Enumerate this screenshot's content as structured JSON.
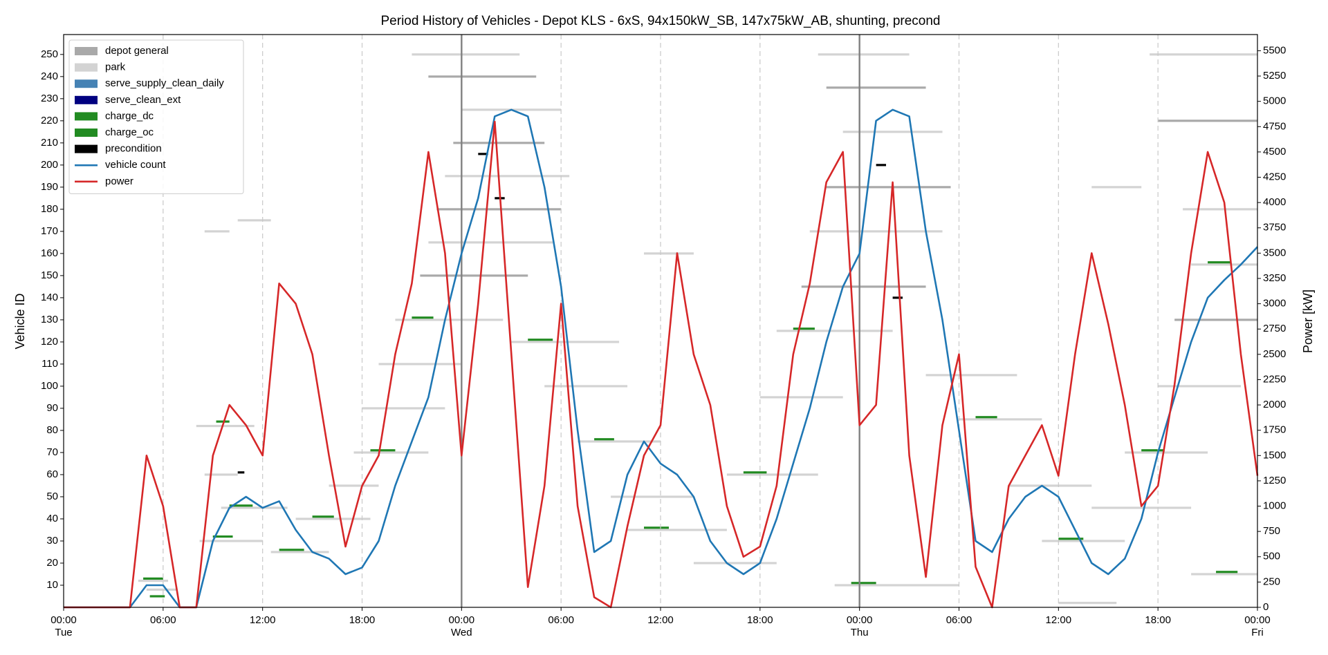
{
  "chart_data": {
    "type": "timeline",
    "title": "Period History of Vehicles - Depot KLS - 6xS, 94x150kW_SB, 147x75kW_AB, shunting, precond",
    "y_label": "Vehicle ID",
    "y2_label": "Power [kW]",
    "xlim": [
      0,
      72
    ],
    "xticks": [
      {
        "value": 0,
        "label": "00:00"
      },
      {
        "value": 6,
        "label": "06:00"
      },
      {
        "value": 12,
        "label": "12:00"
      },
      {
        "value": 18,
        "label": "18:00"
      },
      {
        "value": 24,
        "label": "00:00"
      },
      {
        "value": 30,
        "label": "06:00"
      },
      {
        "value": 36,
        "label": "12:00"
      },
      {
        "value": 42,
        "label": "18:00"
      },
      {
        "value": 48,
        "label": "00:00"
      },
      {
        "value": 54,
        "label": "06:00"
      },
      {
        "value": 60,
        "label": "12:00"
      },
      {
        "value": 66,
        "label": "18:00"
      },
      {
        "value": 72,
        "label": "00:00"
      }
    ],
    "xtick_days": [
      {
        "value": 0,
        "label": "Tue"
      },
      {
        "value": 24,
        "label": "Wed"
      },
      {
        "value": 48,
        "label": "Thu"
      },
      {
        "value": 72,
        "label": "Fri"
      }
    ],
    "ylim": [
      0,
      259
    ],
    "yticks": [
      10,
      20,
      30,
      40,
      50,
      60,
      70,
      80,
      90,
      100,
      110,
      120,
      130,
      140,
      150,
      160,
      170,
      180,
      190,
      200,
      210,
      220,
      230,
      240,
      250
    ],
    "y2lim": [
      0,
      5660
    ],
    "y2ticks": [
      0,
      250,
      500,
      750,
      1000,
      1250,
      1500,
      1750,
      2000,
      2250,
      2500,
      2750,
      3000,
      3250,
      3500,
      3750,
      4000,
      4250,
      4500,
      4750,
      5000,
      5250,
      5500
    ],
    "grid": true,
    "legend": "upper left",
    "period_types": [
      {
        "name": "depot general",
        "color": "#a9a9a9"
      },
      {
        "name": "park",
        "color": "#d3d3d3"
      },
      {
        "name": "serve_supply_clean_daily",
        "color": "#4682b4"
      },
      {
        "name": "serve_clean_ext",
        "color": "#000080"
      },
      {
        "name": "charge_dc",
        "color": "#228b22"
      },
      {
        "name": "charge_oc",
        "color": "#228b22"
      },
      {
        "name": "precondition",
        "color": "#000000"
      }
    ],
    "periods": [
      [
        12,
        4.5,
        6.3,
        "park"
      ],
      [
        13,
        4.8,
        6.0,
        "charge_dc"
      ],
      [
        8,
        5.0,
        6.8,
        "park"
      ],
      [
        5,
        5.2,
        6.1,
        "charge_dc"
      ],
      [
        30,
        8.2,
        12.0,
        "park"
      ],
      [
        32,
        9.0,
        10.2,
        "charge_dc"
      ],
      [
        45,
        9.5,
        13.5,
        "park"
      ],
      [
        46,
        10.0,
        11.4,
        "charge_dc"
      ],
      [
        60,
        8.5,
        10.5,
        "park"
      ],
      [
        61,
        10.5,
        10.9,
        "precondition"
      ],
      [
        82,
        8.0,
        11.5,
        "park"
      ],
      [
        84,
        9.2,
        10.0,
        "charge_dc"
      ],
      [
        170,
        8.5,
        10.0,
        "park"
      ],
      [
        175,
        10.5,
        12.5,
        "park"
      ],
      [
        25,
        12.5,
        16.0,
        "park"
      ],
      [
        26,
        13.0,
        14.5,
        "charge_dc"
      ],
      [
        40,
        14.0,
        18.5,
        "park"
      ],
      [
        41,
        15.0,
        16.3,
        "charge_dc"
      ],
      [
        55,
        16.0,
        19.0,
        "park"
      ],
      [
        70,
        17.5,
        22.0,
        "park"
      ],
      [
        71,
        18.5,
        20.0,
        "charge_dc"
      ],
      [
        90,
        18.0,
        23.0,
        "park"
      ],
      [
        110,
        19.0,
        24.0,
        "park"
      ],
      [
        130,
        20.0,
        26.5,
        "park"
      ],
      [
        131,
        21.0,
        22.3,
        "charge_dc"
      ],
      [
        150,
        21.5,
        28.0,
        "depot general"
      ],
      [
        165,
        22.0,
        29.5,
        "park"
      ],
      [
        180,
        22.5,
        30.0,
        "depot general"
      ],
      [
        195,
        23.0,
        30.5,
        "park"
      ],
      [
        210,
        23.5,
        29.0,
        "depot general"
      ],
      [
        225,
        24.0,
        30.0,
        "park"
      ],
      [
        240,
        22.0,
        28.5,
        "depot general"
      ],
      [
        250,
        21.0,
        27.5,
        "park"
      ],
      [
        205,
        25.0,
        25.6,
        "precondition"
      ],
      [
        185,
        26.0,
        26.6,
        "precondition"
      ],
      [
        120,
        27.0,
        33.5,
        "park"
      ],
      [
        121,
        28.0,
        29.5,
        "charge_dc"
      ],
      [
        100,
        29.0,
        34.0,
        "park"
      ],
      [
        75,
        31.0,
        36.0,
        "park"
      ],
      [
        76,
        32.0,
        33.2,
        "charge_dc"
      ],
      [
        50,
        33.0,
        38.0,
        "park"
      ],
      [
        35,
        34.0,
        40.0,
        "park"
      ],
      [
        36,
        35.0,
        36.5,
        "charge_dc"
      ],
      [
        160,
        35.0,
        38.0,
        "park"
      ],
      [
        20,
        38.0,
        43.0,
        "park"
      ],
      [
        60,
        40.0,
        45.5,
        "park"
      ],
      [
        61,
        41.0,
        42.4,
        "charge_dc"
      ],
      [
        95,
        42.0,
        47.0,
        "park"
      ],
      [
        125,
        43.0,
        50.0,
        "park"
      ],
      [
        126,
        44.0,
        45.3,
        "charge_dc"
      ],
      [
        145,
        44.5,
        52.0,
        "depot general"
      ],
      [
        170,
        45.0,
        53.0,
        "park"
      ],
      [
        190,
        46.0,
        53.5,
        "depot general"
      ],
      [
        215,
        47.0,
        53.0,
        "park"
      ],
      [
        235,
        46.0,
        52.0,
        "depot general"
      ],
      [
        250,
        45.5,
        51.0,
        "park"
      ],
      [
        200,
        49.0,
        49.6,
        "precondition"
      ],
      [
        140,
        50.0,
        50.6,
        "precondition"
      ],
      [
        10,
        46.5,
        54.0,
        "park"
      ],
      [
        11,
        47.5,
        49.0,
        "charge_dc"
      ],
      [
        105,
        52.0,
        57.5,
        "park"
      ],
      [
        85,
        54.0,
        59.0,
        "park"
      ],
      [
        86,
        55.0,
        56.3,
        "charge_dc"
      ],
      [
        55,
        57.0,
        62.0,
        "park"
      ],
      [
        30,
        59.0,
        64.0,
        "park"
      ],
      [
        31,
        60.0,
        61.5,
        "charge_dc"
      ],
      [
        45,
        62.0,
        68.0,
        "park"
      ],
      [
        70,
        64.0,
        69.0,
        "park"
      ],
      [
        71,
        65.0,
        66.4,
        "charge_dc"
      ],
      [
        100,
        66.0,
        71.0,
        "park"
      ],
      [
        130,
        67.0,
        72.0,
        "depot general"
      ],
      [
        155,
        68.0,
        72.0,
        "park"
      ],
      [
        156,
        69.0,
        70.4,
        "charge_dc"
      ],
      [
        180,
        67.5,
        72.0,
        "park"
      ],
      [
        220,
        66.0,
        72.0,
        "depot general"
      ],
      [
        250,
        65.5,
        72.0,
        "park"
      ],
      [
        190,
        62.0,
        65.0,
        "park"
      ],
      [
        15,
        68.0,
        72.0,
        "park"
      ],
      [
        16,
        69.5,
        70.8,
        "charge_dc"
      ],
      [
        2,
        60.0,
        63.5,
        "park"
      ]
    ],
    "x": [
      0,
      1,
      2,
      3,
      4,
      5,
      6,
      7,
      8,
      9,
      10,
      11,
      12,
      13,
      14,
      15,
      16,
      17,
      18,
      19,
      20,
      21,
      22,
      23,
      24,
      25,
      26,
      27,
      28,
      29,
      30,
      31,
      32,
      33,
      34,
      35,
      36,
      37,
      38,
      39,
      40,
      41,
      42,
      43,
      44,
      45,
      46,
      47,
      48,
      49,
      50,
      51,
      52,
      53,
      54,
      55,
      56,
      57,
      58,
      59,
      60,
      61,
      62,
      63,
      64,
      65,
      66,
      67,
      68,
      69,
      70,
      71,
      72
    ],
    "series": [
      {
        "name": "vehicle count",
        "color": "#1f77b4",
        "axis": "y",
        "values": [
          0,
          0,
          0,
          0,
          0,
          10,
          10,
          0,
          0,
          30,
          45,
          50,
          45,
          48,
          35,
          25,
          22,
          15,
          18,
          30,
          55,
          75,
          95,
          130,
          160,
          185,
          222,
          225,
          222,
          190,
          145,
          80,
          25,
          30,
          60,
          75,
          65,
          60,
          50,
          30,
          20,
          15,
          20,
          40,
          65,
          90,
          120,
          145,
          160,
          220,
          225,
          222,
          170,
          130,
          80,
          30,
          25,
          40,
          50,
          55,
          50,
          35,
          20,
          15,
          22,
          40,
          70,
          95,
          120,
          140,
          148,
          155,
          163
        ]
      },
      {
        "name": "power",
        "color": "#d62728",
        "axis": "y2",
        "values": [
          0,
          0,
          0,
          0,
          0,
          1500,
          1000,
          0,
          0,
          1500,
          2000,
          1800,
          1500,
          3200,
          3000,
          2500,
          1500,
          600,
          1200,
          1500,
          2500,
          3200,
          4500,
          3500,
          1500,
          3000,
          4800,
          2500,
          200,
          1200,
          3000,
          1000,
          100,
          0,
          800,
          1500,
          1800,
          3500,
          2500,
          2000,
          1000,
          500,
          600,
          1200,
          2500,
          3200,
          4200,
          4500,
          1800,
          2000,
          4200,
          1500,
          300,
          1800,
          2500,
          400,
          0,
          1200,
          1500,
          1800,
          1300,
          2500,
          3500,
          2800,
          2000,
          1000,
          1200,
          2200,
          3500,
          4500,
          4000,
          2500,
          1300
        ]
      }
    ]
  }
}
